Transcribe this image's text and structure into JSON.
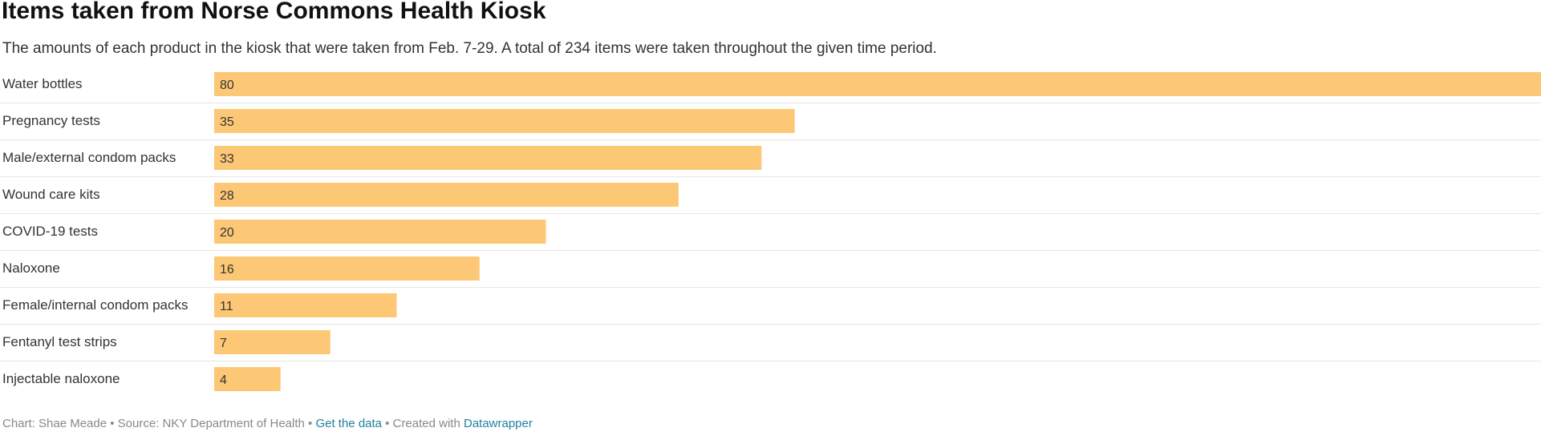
{
  "chart_data": {
    "type": "bar",
    "orientation": "horizontal",
    "title": "Items taken from Norse Commons Health Kiosk",
    "subtitle": "The amounts of each product in the kiosk that were taken from Feb. 7-29. A total of 234 items were taken throughout the given time period.",
    "categories": [
      "Water bottles",
      "Pregnancy tests",
      "Male/external condom packs",
      "Wound care kits",
      "COVID-19 tests",
      "Naloxone",
      "Female/internal condom packs",
      "Fentanyl test strips",
      "Injectable naloxone"
    ],
    "values": [
      80,
      35,
      33,
      28,
      20,
      16,
      11,
      7,
      4
    ],
    "xlim": [
      0,
      80
    ],
    "bar_color": "#fdc876",
    "grid": false
  },
  "footer": {
    "credit": "Chart: Shae Meade",
    "sep1": " • ",
    "source": "Source: NKY Department of Health",
    "sep2": " • ",
    "get_data_link": "Get the data",
    "sep3": " • ",
    "created_with": "Created with ",
    "datawrapper_link": "Datawrapper"
  },
  "colors": {
    "link": "#1d81a2",
    "divider": "#e6e6e6",
    "footer_text": "#888888"
  }
}
